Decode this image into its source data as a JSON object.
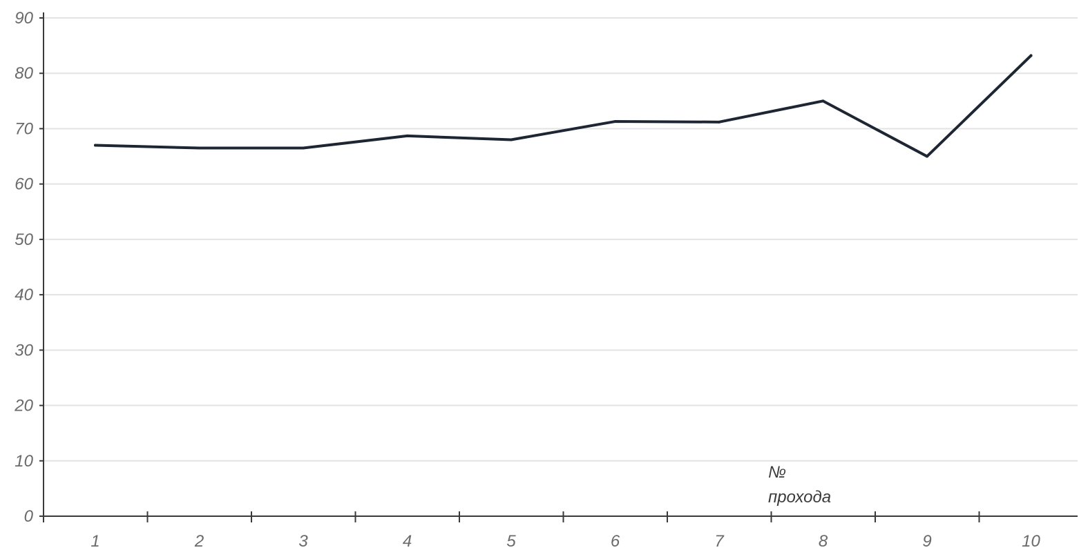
{
  "chart_data": {
    "type": "line",
    "title": "",
    "xlabel": "№\nпроxода",
    "xlabel_lines": [
      "№",
      "прохода"
    ],
    "ylabel": "",
    "categories": [
      "1",
      "2",
      "3",
      "4",
      "5",
      "6",
      "7",
      "8",
      "9",
      "10"
    ],
    "series": [
      {
        "values": [
          67,
          66.5,
          66.5,
          68.7,
          68,
          71.3,
          71.2,
          75,
          65,
          83.2
        ]
      }
    ],
    "ylim": [
      0,
      90
    ],
    "yticks": [
      0,
      10,
      20,
      30,
      40,
      50,
      60,
      70,
      80,
      90
    ],
    "ytick_labels": [
      "0",
      "10",
      "20",
      "30",
      "40",
      "50",
      "60",
      "70",
      "80",
      "90"
    ],
    "grid": true,
    "legend": "none",
    "colors": {
      "line": "#1e2633",
      "grid": "#e3e3e3",
      "axis": "#3a3a3a",
      "tick_text": "#6a6a6a"
    }
  }
}
